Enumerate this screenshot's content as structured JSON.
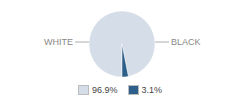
{
  "chart_data": {
    "type": "pie",
    "categories": [
      "WHITE",
      "BLACK"
    ],
    "values": [
      96.9,
      3.1
    ],
    "value_labels": [
      "96.9%",
      "3.1%"
    ],
    "data_labels": true,
    "colors": [
      "#d5dde8",
      "#2d5f8a"
    ],
    "legend": "bottom"
  }
}
